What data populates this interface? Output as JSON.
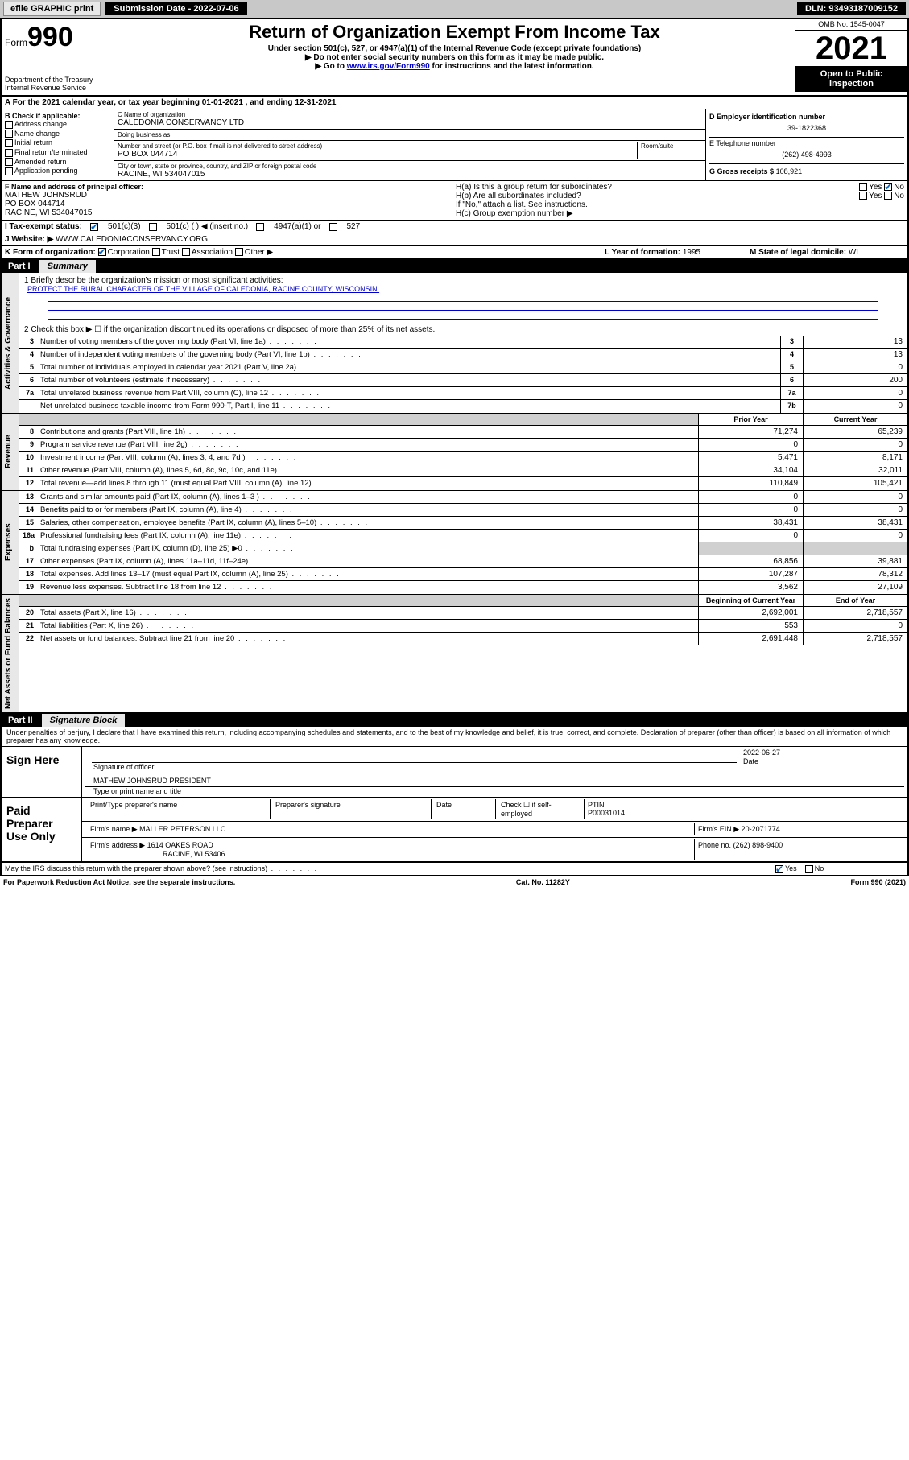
{
  "topbar": {
    "efile": "efile GRAPHIC print",
    "submission": "Submission Date - 2022-07-06",
    "dln": "DLN: 93493187009152"
  },
  "header": {
    "form_prefix": "Form",
    "form_number": "990",
    "dept": "Department of the Treasury",
    "irs": "Internal Revenue Service",
    "title": "Return of Organization Exempt From Income Tax",
    "sub1": "Under section 501(c), 527, or 4947(a)(1) of the Internal Revenue Code (except private foundations)",
    "sub2": "▶ Do not enter social security numbers on this form as it may be made public.",
    "sub3_prefix": "▶ Go to ",
    "sub3_link": "www.irs.gov/Form990",
    "sub3_suffix": " for instructions and the latest information.",
    "omb": "OMB No. 1545-0047",
    "year": "2021",
    "open": "Open to Public Inspection"
  },
  "lineA": "A For the 2021 calendar year, or tax year beginning 01-01-2021   , and ending 12-31-2021",
  "B": {
    "label": "B Check if applicable:",
    "items": [
      "Address change",
      "Name change",
      "Initial return",
      "Final return/terminated",
      "Amended return",
      "Application pending"
    ]
  },
  "C": {
    "name_label": "C Name of organization",
    "name": "CALEDONIA CONSERVANCY LTD",
    "dba_label": "Doing business as",
    "dba": "",
    "addr_label": "Number and street (or P.O. box if mail is not delivered to street address)",
    "room_label": "Room/suite",
    "addr": "PO BOX 044714",
    "city_label": "City or town, state or province, country, and ZIP or foreign postal code",
    "city": "RACINE, WI  534047015"
  },
  "D": {
    "label": "D Employer identification number",
    "value": "39-1822368"
  },
  "E": {
    "label": "E Telephone number",
    "value": "(262) 498-4993"
  },
  "G": {
    "label": "G Gross receipts $",
    "value": "108,921"
  },
  "F": {
    "label": "F Name and address of principal officer:",
    "name": "MATHEW JOHNSRUD",
    "addr1": "PO BOX 044714",
    "addr2": "RACINE, WI  534047015"
  },
  "H": {
    "a": "H(a)  Is this a group return for subordinates?",
    "b": "H(b)  Are all subordinates included?",
    "b_note": "If \"No,\" attach a list. See instructions.",
    "c": "H(c)  Group exemption number ▶"
  },
  "I": {
    "label": "I    Tax-exempt status:",
    "opts": [
      "501(c)(3)",
      "501(c) (   ) ◀ (insert no.)",
      "4947(a)(1) or",
      "527"
    ]
  },
  "J": {
    "label": "J   Website: ▶",
    "value": "WWW.CALEDONIACONSERVANCY.ORG"
  },
  "K": {
    "label": "K Form of organization:",
    "opts": [
      "Corporation",
      "Trust",
      "Association",
      "Other ▶"
    ]
  },
  "L": {
    "label": "L Year of formation:",
    "value": "1995"
  },
  "M": {
    "label": "M State of legal domicile:",
    "value": "WI"
  },
  "partI": {
    "header": "Part I",
    "title": "Summary",
    "line1_label": "1  Briefly describe the organization's mission or most significant activities:",
    "mission": "PROTECT THE RURAL CHARACTER OF THE VILLAGE OF CALEDONIA, RACINE COUNTY, WISCONSIN.",
    "line2": "2   Check this box ▶ ☐  if the organization discontinued its operations or disposed of more than 25% of its net assets.",
    "vlabels": {
      "gov": "Activities & Governance",
      "rev": "Revenue",
      "exp": "Expenses",
      "net": "Net Assets or Fund Balances"
    },
    "col_prior": "Prior Year",
    "col_current": "Current Year",
    "col_begin": "Beginning of Current Year",
    "col_end": "End of Year",
    "gov_lines": [
      {
        "n": "3",
        "d": "Number of voting members of the governing body (Part VI, line 1a)",
        "box": "3",
        "v": "13"
      },
      {
        "n": "4",
        "d": "Number of independent voting members of the governing body (Part VI, line 1b)",
        "box": "4",
        "v": "13"
      },
      {
        "n": "5",
        "d": "Total number of individuals employed in calendar year 2021 (Part V, line 2a)",
        "box": "5",
        "v": "0"
      },
      {
        "n": "6",
        "d": "Total number of volunteers (estimate if necessary)",
        "box": "6",
        "v": "200"
      },
      {
        "n": "7a",
        "d": "Total unrelated business revenue from Part VIII, column (C), line 12",
        "box": "7a",
        "v": "0"
      },
      {
        "n": "",
        "d": "Net unrelated business taxable income from Form 990-T, Part I, line 11",
        "box": "7b",
        "v": "0"
      }
    ],
    "rev_lines": [
      {
        "n": "8",
        "d": "Contributions and grants (Part VIII, line 1h)",
        "p": "71,274",
        "c": "65,239"
      },
      {
        "n": "9",
        "d": "Program service revenue (Part VIII, line 2g)",
        "p": "0",
        "c": "0"
      },
      {
        "n": "10",
        "d": "Investment income (Part VIII, column (A), lines 3, 4, and 7d )",
        "p": "5,471",
        "c": "8,171"
      },
      {
        "n": "11",
        "d": "Other revenue (Part VIII, column (A), lines 5, 6d, 8c, 9c, 10c, and 11e)",
        "p": "34,104",
        "c": "32,011"
      },
      {
        "n": "12",
        "d": "Total revenue—add lines 8 through 11 (must equal Part VIII, column (A), line 12)",
        "p": "110,849",
        "c": "105,421"
      }
    ],
    "exp_lines": [
      {
        "n": "13",
        "d": "Grants and similar amounts paid (Part IX, column (A), lines 1–3 )",
        "p": "0",
        "c": "0"
      },
      {
        "n": "14",
        "d": "Benefits paid to or for members (Part IX, column (A), line 4)",
        "p": "0",
        "c": "0"
      },
      {
        "n": "15",
        "d": "Salaries, other compensation, employee benefits (Part IX, column (A), lines 5–10)",
        "p": "38,431",
        "c": "38,431"
      },
      {
        "n": "16a",
        "d": "Professional fundraising fees (Part IX, column (A), line 11e)",
        "p": "0",
        "c": "0"
      },
      {
        "n": "b",
        "d": "Total fundraising expenses (Part IX, column (D), line 25) ▶0",
        "p": "",
        "c": "",
        "shade": true
      },
      {
        "n": "17",
        "d": "Other expenses (Part IX, column (A), lines 11a–11d, 11f–24e)",
        "p": "68,856",
        "c": "39,881"
      },
      {
        "n": "18",
        "d": "Total expenses. Add lines 13–17 (must equal Part IX, column (A), line 25)",
        "p": "107,287",
        "c": "78,312"
      },
      {
        "n": "19",
        "d": "Revenue less expenses. Subtract line 18 from line 12",
        "p": "3,562",
        "c": "27,109"
      }
    ],
    "net_lines": [
      {
        "n": "20",
        "d": "Total assets (Part X, line 16)",
        "p": "2,692,001",
        "c": "2,718,557"
      },
      {
        "n": "21",
        "d": "Total liabilities (Part X, line 26)",
        "p": "553",
        "c": "0"
      },
      {
        "n": "22",
        "d": "Net assets or fund balances. Subtract line 21 from line 20",
        "p": "2,691,448",
        "c": "2,718,557"
      }
    ]
  },
  "partII": {
    "header": "Part II",
    "title": "Signature Block",
    "declaration": "Under penalties of perjury, I declare that I have examined this return, including accompanying schedules and statements, and to the best of my knowledge and belief, it is true, correct, and complete. Declaration of preparer (other than officer) is based on all information of which preparer has any knowledge."
  },
  "sign": {
    "label": "Sign Here",
    "sig_officer": "Signature of officer",
    "date_label": "Date",
    "date": "2022-06-27",
    "name": "MATHEW JOHNSRUD PRESIDENT",
    "name_label": "Type or print name and title"
  },
  "paid": {
    "label": "Paid Preparer Use Only",
    "cols": [
      "Print/Type preparer's name",
      "Preparer's signature",
      "Date"
    ],
    "check_label": "Check ☐ if self-employed",
    "ptin_label": "PTIN",
    "ptin": "P00031014",
    "firm_name_label": "Firm's name   ▶",
    "firm_name": "MALLER PETERSON LLC",
    "firm_ein_label": "Firm's EIN ▶",
    "firm_ein": "20-2071774",
    "firm_addr_label": "Firm's address ▶",
    "firm_addr1": "1614 OAKES ROAD",
    "firm_addr2": "RACINE, WI  53406",
    "phone_label": "Phone no.",
    "phone": "(262) 898-9400"
  },
  "footer": {
    "discuss": "May the IRS discuss this return with the preparer shown above? (see instructions)",
    "paperwork": "For Paperwork Reduction Act Notice, see the separate instructions.",
    "catno": "Cat. No. 11282Y",
    "formref": "Form 990 (2021)"
  },
  "yesno": {
    "yes": "Yes",
    "no": "No"
  }
}
